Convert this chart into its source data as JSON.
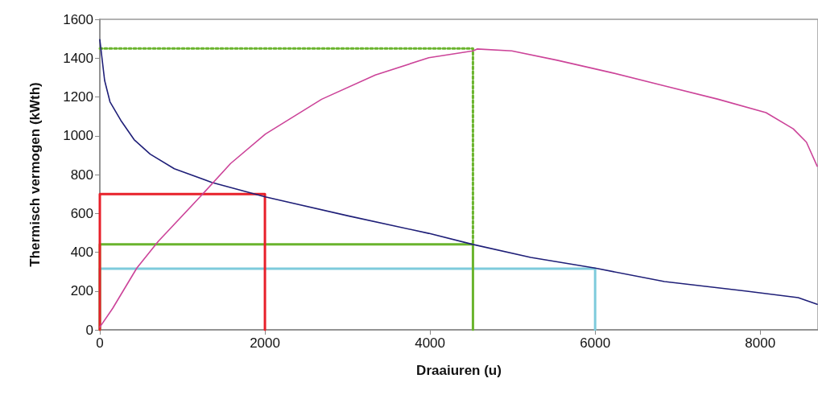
{
  "chart_data": {
    "type": "line",
    "xlabel": "Draaiuren (u)",
    "ylabel": "Thermisch vermogen (kWth)",
    "xlim": [
      0,
      8700
    ],
    "xticks": [
      0,
      2000,
      4000,
      6000,
      8000
    ],
    "ylim": [
      0,
      1600
    ],
    "yticks": [
      0,
      200,
      400,
      600,
      800,
      1000,
      1200,
      1400,
      1600
    ],
    "grid": false,
    "marker": "none",
    "line_style": "solid",
    "series": [
      {
        "color": "#1f1f78",
        "x": [
          0,
          58,
          123,
          253,
          415,
          610,
          902,
          1355,
          2005,
          3010,
          3985,
          4520,
          5220,
          6000,
          6840,
          7820,
          8460,
          8690
        ],
        "values": [
          1495,
          1285,
          1175,
          1080,
          980,
          905,
          830,
          760,
          685,
          587,
          497,
          440,
          373,
          318,
          249,
          200,
          166,
          132
        ]
      },
      {
        "color": "#cc4499",
        "x": [
          0,
          156,
          448,
          708,
          1227,
          1584,
          2006,
          2687,
          3337,
          3985,
          4520,
          4570,
          4990,
          5540,
          6190,
          6840,
          7490,
          8070,
          8400,
          8560,
          8690
        ],
        "values": [
          14,
          111,
          318,
          456,
          691,
          857,
          1009,
          1188,
          1313,
          1402,
          1437,
          1447,
          1437,
          1389,
          1326,
          1257,
          1188,
          1119,
          1036,
          967,
          843
        ]
      },
      {
        "color": "#e8202a",
        "x": [
          0,
          0,
          2000,
          2000
        ],
        "values": [
          0,
          700,
          700,
          0
        ]
      },
      {
        "color": "#6ab42d",
        "x": [
          0,
          0,
          4520,
          4520
        ],
        "values": [
          0,
          440,
          440,
          0
        ]
      },
      {
        "color": "#7ecbdc",
        "x": [
          0,
          0,
          6000,
          6000
        ],
        "values": [
          0,
          315,
          315,
          0
        ]
      },
      {
        "color": "#6ab42d",
        "line_style": "dotted",
        "x": [
          0,
          4520,
          4520
        ],
        "values": [
          1450,
          1450,
          440
        ]
      }
    ]
  }
}
